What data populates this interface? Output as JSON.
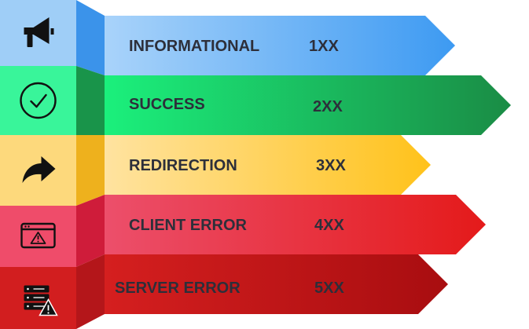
{
  "categories": [
    {
      "id": "informational",
      "label": "INFORMATIONAL",
      "code": "1XX",
      "icon": "megaphone-icon",
      "colors": {
        "light": "#a9d3fa",
        "dark": "#3d9af2",
        "side_light": "#9fcef7",
        "side_dark": "#3b93ea"
      }
    },
    {
      "id": "success",
      "label": "SUCCESS",
      "code": "2XX",
      "icon": "check-circle-icon",
      "colors": {
        "light": "#1bf07c",
        "dark": "#1a8c45",
        "side_light": "#39f59a",
        "side_dark": "#19944a"
      }
    },
    {
      "id": "redirection",
      "label": "REDIRECTION",
      "code": "3XX",
      "icon": "share-arrow-icon",
      "colors": {
        "light": "#ffe3a0",
        "dark": "#ffc21a",
        "side_light": "#fdd97c",
        "side_dark": "#eeb11d"
      }
    },
    {
      "id": "client_error",
      "label": "CLIENT ERROR",
      "code": "4XX",
      "icon": "browser-warning-icon",
      "colors": {
        "light": "#ec4f6b",
        "dark": "#e41a1a",
        "side_light": "#ef4c6a",
        "side_dark": "#cf1c3a"
      }
    },
    {
      "id": "server_error",
      "label": "SERVER ERROR",
      "code": "5XX",
      "icon": "server-warning-icon",
      "colors": {
        "light": "#d51f1f",
        "dark": "#a80d10",
        "side_light": "#d21e1f",
        "side_dark": "#b4161a"
      }
    }
  ]
}
